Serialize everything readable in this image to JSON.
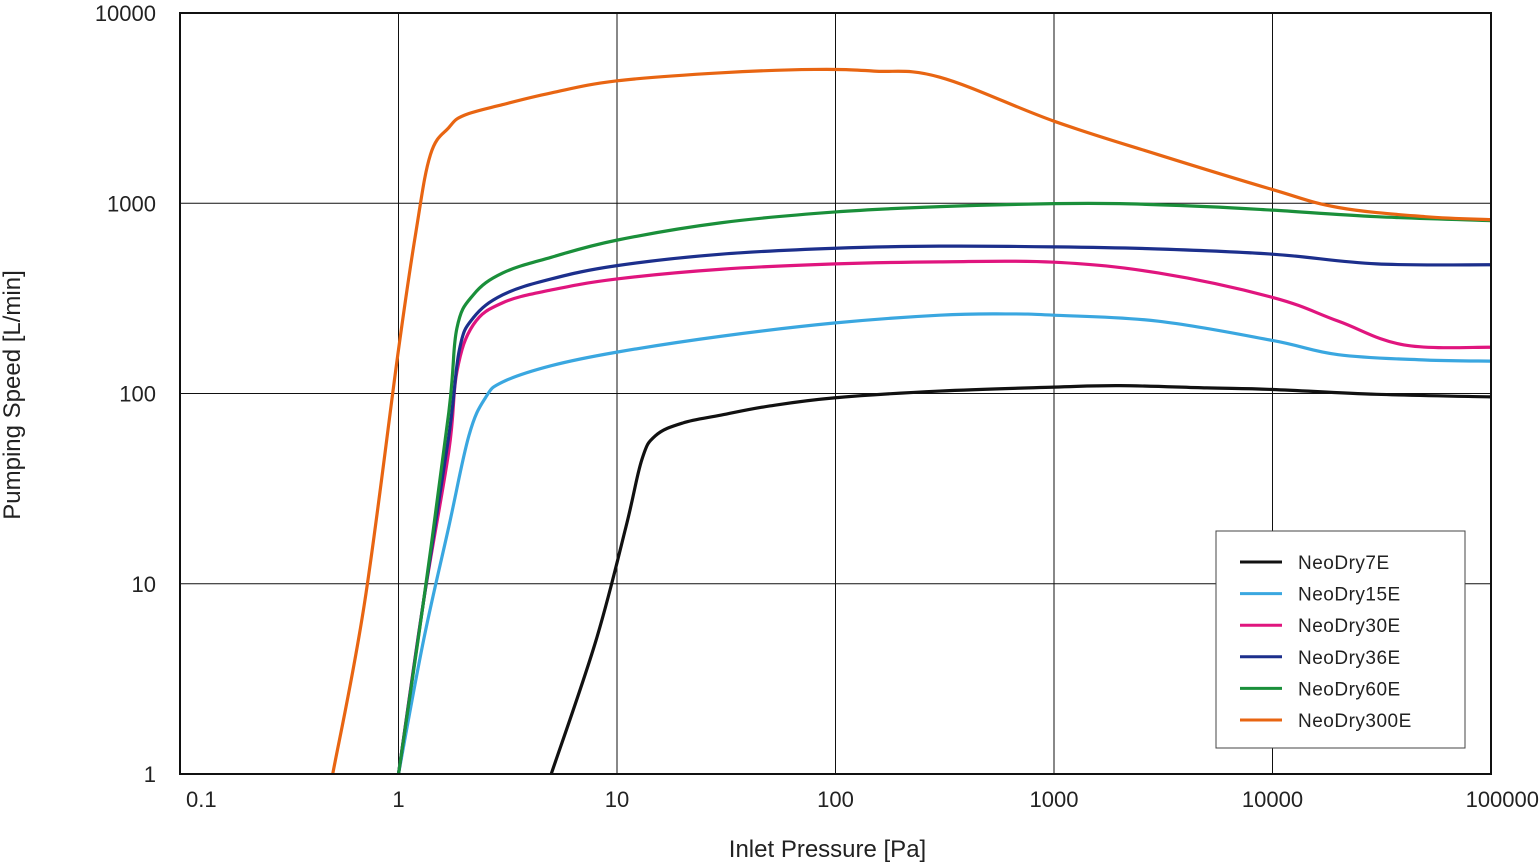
{
  "chart_data": {
    "type": "line",
    "xscale": "log",
    "yscale": "log",
    "xlim": [
      0.1,
      100000
    ],
    "ylim": [
      1,
      10000
    ],
    "xlabel": "Inlet Pressure [Pa]",
    "ylabel": "Pumping Speed [L/min]",
    "grid": true,
    "legend_position": "lower-right",
    "x_tick_labels": [
      "0.1",
      "1",
      "10",
      "100",
      "1000",
      "10000",
      "100000"
    ],
    "x_ticks": [
      0.1,
      1,
      10,
      100,
      1000,
      10000,
      100000
    ],
    "y_tick_labels": [
      "1",
      "10",
      "100",
      "1000",
      "10000"
    ],
    "y_ticks": [
      1,
      10,
      100,
      1000,
      10000
    ],
    "series": [
      {
        "name": "NeoDry7E",
        "color": "#111111",
        "points": [
          [
            5,
            1
          ],
          [
            8,
            5
          ],
          [
            11,
            20
          ],
          [
            13,
            45
          ],
          [
            15,
            60
          ],
          [
            20,
            70
          ],
          [
            30,
            77
          ],
          [
            50,
            86
          ],
          [
            100,
            95
          ],
          [
            300,
            103
          ],
          [
            1000,
            108
          ],
          [
            2000,
            110
          ],
          [
            5000,
            107
          ],
          [
            10000,
            105
          ],
          [
            30000,
            99
          ],
          [
            100000,
            96
          ]
        ]
      },
      {
        "name": "NeoDry15E",
        "color": "#3aa7e0",
        "points": [
          [
            1,
            1
          ],
          [
            1.3,
            5
          ],
          [
            1.7,
            20
          ],
          [
            2.1,
            60
          ],
          [
            2.5,
            95
          ],
          [
            3,
            115
          ],
          [
            5,
            140
          ],
          [
            10,
            165
          ],
          [
            30,
            200
          ],
          [
            100,
            235
          ],
          [
            300,
            258
          ],
          [
            600,
            262
          ],
          [
            1000,
            258
          ],
          [
            3000,
            240
          ],
          [
            10000,
            190
          ],
          [
            20000,
            160
          ],
          [
            50000,
            150
          ],
          [
            100000,
            148
          ]
        ]
      },
      {
        "name": "NeoDry30E",
        "color": "#e0157e",
        "points": [
          [
            1,
            1
          ],
          [
            1.3,
            8
          ],
          [
            1.7,
            50
          ],
          [
            1.85,
            130
          ],
          [
            2.2,
            230
          ],
          [
            3,
            300
          ],
          [
            5,
            350
          ],
          [
            10,
            400
          ],
          [
            30,
            450
          ],
          [
            100,
            480
          ],
          [
            300,
            492
          ],
          [
            1000,
            490
          ],
          [
            3000,
            430
          ],
          [
            10000,
            320
          ],
          [
            20000,
            240
          ],
          [
            40000,
            180
          ],
          [
            100000,
            175
          ]
        ]
      },
      {
        "name": "NeoDry36E",
        "color": "#1c2f8c",
        "points": [
          [
            1,
            1
          ],
          [
            1.3,
            8
          ],
          [
            1.7,
            60
          ],
          [
            1.9,
            170
          ],
          [
            2.2,
            250
          ],
          [
            3,
            330
          ],
          [
            5,
            400
          ],
          [
            10,
            470
          ],
          [
            30,
            540
          ],
          [
            100,
            580
          ],
          [
            300,
            595
          ],
          [
            1000,
            590
          ],
          [
            3000,
            575
          ],
          [
            10000,
            540
          ],
          [
            30000,
            480
          ],
          [
            100000,
            475
          ]
        ]
      },
      {
        "name": "NeoDry60E",
        "color": "#1a8f3a",
        "points": [
          [
            1,
            1
          ],
          [
            1.3,
            8
          ],
          [
            1.7,
            80
          ],
          [
            1.85,
            220
          ],
          [
            2.2,
            330
          ],
          [
            3,
            430
          ],
          [
            5,
            520
          ],
          [
            10,
            640
          ],
          [
            30,
            790
          ],
          [
            100,
            900
          ],
          [
            300,
            960
          ],
          [
            1000,
            995
          ],
          [
            2000,
            995
          ],
          [
            5000,
            960
          ],
          [
            10000,
            920
          ],
          [
            30000,
            850
          ],
          [
            100000,
            810
          ]
        ]
      },
      {
        "name": "NeoDry300E",
        "color": "#e86512",
        "points": [
          [
            0.5,
            1
          ],
          [
            0.7,
            8
          ],
          [
            1,
            170
          ],
          [
            1.2,
            700
          ],
          [
            1.4,
            1800
          ],
          [
            1.7,
            2500
          ],
          [
            2,
            2900
          ],
          [
            3,
            3300
          ],
          [
            5,
            3800
          ],
          [
            10,
            4400
          ],
          [
            30,
            4850
          ],
          [
            80,
            5050
          ],
          [
            150,
            4950
          ],
          [
            300,
            4600
          ],
          [
            1000,
            2700
          ],
          [
            3000,
            1800
          ],
          [
            10000,
            1180
          ],
          [
            20000,
            950
          ],
          [
            50000,
            850
          ],
          [
            100000,
            820
          ]
        ]
      }
    ]
  }
}
